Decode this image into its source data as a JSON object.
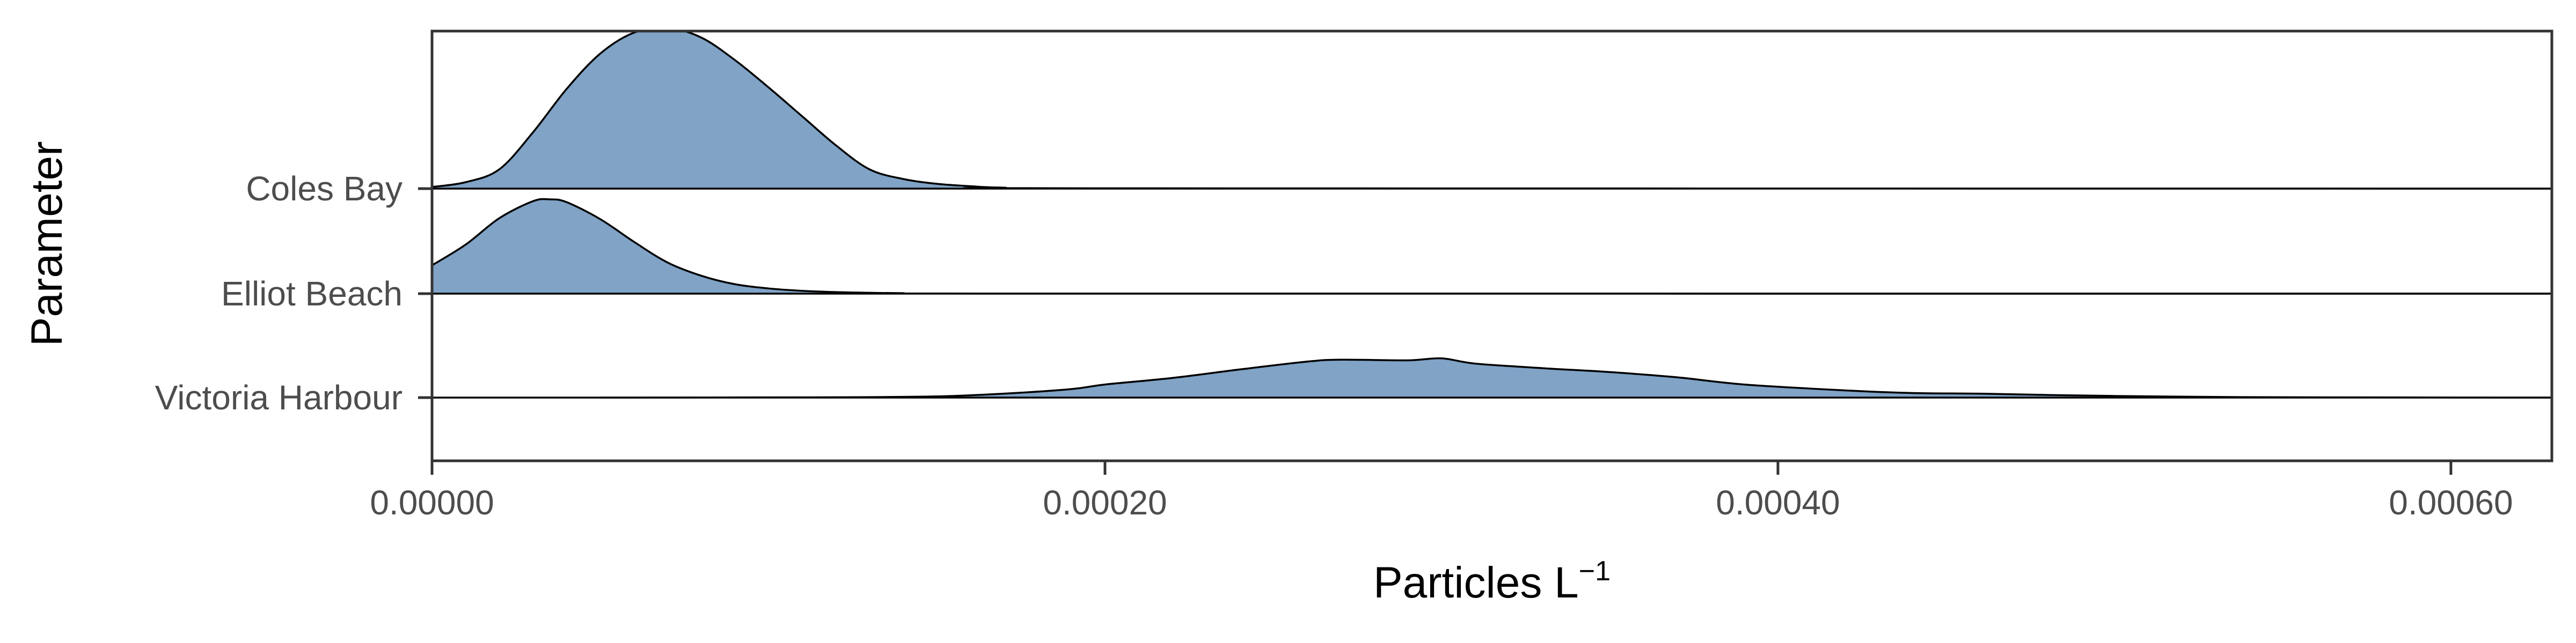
{
  "chart_data": {
    "type": "ridgeline",
    "xlabel": "Particles L",
    "xlabel_superscript": "−1",
    "ylabel": "Parameter",
    "xlim": [
      0,
      0.00063
    ],
    "x_ticks": [
      0,
      0.0002,
      0.0004,
      0.0006
    ],
    "x_tick_labels": [
      "0.00000",
      "0.00020",
      "0.00040",
      "0.00060"
    ],
    "categories": [
      "Coles Bay",
      "Elliot Beach",
      "Victoria Harbour"
    ],
    "fill_color": "#4f7fb0",
    "fill_opacity": 0.72,
    "line_color": "#000000",
    "grid": false,
    "series": [
      {
        "category": "Coles Bay",
        "x": [
          0,
          1e-05,
          2e-05,
          3e-05,
          4e-05,
          5e-05,
          6e-05,
          7e-05,
          8e-05,
          9e-05,
          0.0001,
          0.00011,
          0.00012,
          0.00013,
          0.00014,
          0.00015,
          0.00016,
          0.00017,
          0.0002,
          0.00063
        ],
        "density": [
          0.01,
          0.04,
          0.12,
          0.35,
          0.62,
          0.84,
          0.97,
          1.0,
          0.94,
          0.8,
          0.63,
          0.45,
          0.27,
          0.12,
          0.06,
          0.03,
          0.015,
          0.006,
          0.002,
          0.0
        ]
      },
      {
        "category": "Elliot Beach",
        "x": [
          0,
          1e-05,
          2e-05,
          3e-05,
          3.5e-05,
          4e-05,
          5e-05,
          6e-05,
          7e-05,
          8e-05,
          9e-05,
          0.0001,
          0.00011,
          0.00012,
          0.00013,
          0.00014,
          0.00016,
          0.00063
        ],
        "density": [
          0.3,
          0.52,
          0.8,
          0.98,
          1.0,
          0.97,
          0.79,
          0.55,
          0.33,
          0.19,
          0.1,
          0.055,
          0.03,
          0.016,
          0.009,
          0.005,
          0.001,
          0.0
        ]
      },
      {
        "category": "Victoria Harbour",
        "x": [
          5e-05,
          0.00012,
          0.00015,
          0.00017,
          0.00019,
          0.0002,
          0.00022,
          0.00024,
          0.00026,
          0.00027,
          0.00029,
          0.0003,
          0.00031,
          0.00033,
          0.00035,
          0.00037,
          0.00039,
          0.00042,
          0.00044,
          0.00046,
          0.00048,
          0.0005,
          0.00053,
          0.00056,
          0.00063
        ],
        "density": [
          0.0,
          0.005,
          0.018,
          0.06,
          0.13,
          0.2,
          0.3,
          0.43,
          0.55,
          0.58,
          0.57,
          0.6,
          0.52,
          0.45,
          0.39,
          0.31,
          0.2,
          0.11,
          0.07,
          0.06,
          0.04,
          0.025,
          0.01,
          0.004,
          0.0
        ]
      }
    ]
  }
}
